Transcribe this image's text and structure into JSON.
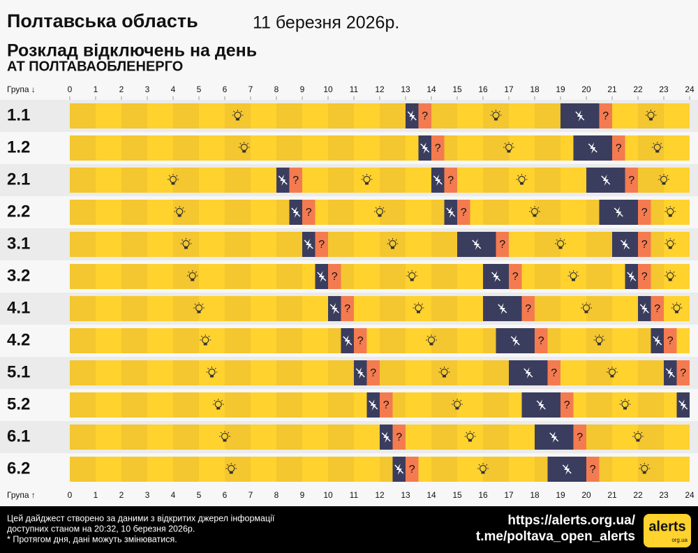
{
  "chart_data": {
    "type": "schedule",
    "title": "Полтавська область",
    "date": "11 березня 2026р.",
    "subtitle": "Розклад відключень на день",
    "company": "АТ ПОЛТАВАОБЛЕНЕРГО",
    "axis_label_top": "Група ↓",
    "axis_label_bottom": "Група ↑",
    "xlim": [
      0,
      24
    ],
    "xticks": [
      0,
      1,
      2,
      3,
      4,
      5,
      6,
      7,
      8,
      9,
      10,
      11,
      12,
      13,
      14,
      15,
      16,
      17,
      18,
      19,
      20,
      21,
      22,
      23,
      24
    ],
    "unknown_label": "?",
    "colors": {
      "on": "#ffd22e",
      "on_alt": "#f4c62f",
      "off": "#3b3d5f",
      "unknown": "#f47b50"
    },
    "groups": [
      {
        "name": "1.1",
        "segments": [
          {
            "start": 13,
            "end": 13.5,
            "state": "off"
          },
          {
            "start": 13.5,
            "end": 14,
            "state": "unknown"
          },
          {
            "start": 19,
            "end": 20.5,
            "state": "off"
          },
          {
            "start": 20.5,
            "end": 21,
            "state": "unknown"
          }
        ]
      },
      {
        "name": "1.2",
        "segments": [
          {
            "start": 13.5,
            "end": 14,
            "state": "off"
          },
          {
            "start": 14,
            "end": 14.5,
            "state": "unknown"
          },
          {
            "start": 19.5,
            "end": 21,
            "state": "off"
          },
          {
            "start": 21,
            "end": 21.5,
            "state": "unknown"
          }
        ]
      },
      {
        "name": "2.1",
        "segments": [
          {
            "start": 8,
            "end": 8.5,
            "state": "off"
          },
          {
            "start": 8.5,
            "end": 9,
            "state": "unknown"
          },
          {
            "start": 14,
            "end": 14.5,
            "state": "off"
          },
          {
            "start": 14.5,
            "end": 15,
            "state": "unknown"
          },
          {
            "start": 20,
            "end": 21.5,
            "state": "off"
          },
          {
            "start": 21.5,
            "end": 22,
            "state": "unknown"
          }
        ]
      },
      {
        "name": "2.2",
        "segments": [
          {
            "start": 8.5,
            "end": 9,
            "state": "off"
          },
          {
            "start": 9,
            "end": 9.5,
            "state": "unknown"
          },
          {
            "start": 14.5,
            "end": 15,
            "state": "off"
          },
          {
            "start": 15,
            "end": 15.5,
            "state": "unknown"
          },
          {
            "start": 20.5,
            "end": 22,
            "state": "off"
          },
          {
            "start": 22,
            "end": 22.5,
            "state": "unknown"
          }
        ]
      },
      {
        "name": "3.1",
        "segments": [
          {
            "start": 9,
            "end": 9.5,
            "state": "off"
          },
          {
            "start": 9.5,
            "end": 10,
            "state": "unknown"
          },
          {
            "start": 15,
            "end": 16.5,
            "state": "off"
          },
          {
            "start": 16.5,
            "end": 17,
            "state": "unknown"
          },
          {
            "start": 21,
            "end": 22,
            "state": "off"
          },
          {
            "start": 22,
            "end": 22.5,
            "state": "unknown"
          }
        ]
      },
      {
        "name": "3.2",
        "segments": [
          {
            "start": 9.5,
            "end": 10,
            "state": "off"
          },
          {
            "start": 10,
            "end": 10.5,
            "state": "unknown"
          },
          {
            "start": 16,
            "end": 17,
            "state": "off"
          },
          {
            "start": 17,
            "end": 17.5,
            "state": "unknown"
          },
          {
            "start": 21.5,
            "end": 22,
            "state": "off"
          },
          {
            "start": 22,
            "end": 22.5,
            "state": "unknown"
          }
        ]
      },
      {
        "name": "4.1",
        "segments": [
          {
            "start": 10,
            "end": 10.5,
            "state": "off"
          },
          {
            "start": 10.5,
            "end": 11,
            "state": "unknown"
          },
          {
            "start": 16,
            "end": 17.5,
            "state": "off"
          },
          {
            "start": 17.5,
            "end": 18,
            "state": "unknown"
          },
          {
            "start": 22,
            "end": 22.5,
            "state": "off"
          },
          {
            "start": 22.5,
            "end": 23,
            "state": "unknown"
          }
        ]
      },
      {
        "name": "4.2",
        "segments": [
          {
            "start": 10.5,
            "end": 11,
            "state": "off"
          },
          {
            "start": 11,
            "end": 11.5,
            "state": "unknown"
          },
          {
            "start": 16.5,
            "end": 18,
            "state": "off"
          },
          {
            "start": 18,
            "end": 18.5,
            "state": "unknown"
          },
          {
            "start": 22.5,
            "end": 23,
            "state": "off"
          },
          {
            "start": 23,
            "end": 23.5,
            "state": "unknown"
          }
        ]
      },
      {
        "name": "5.1",
        "segments": [
          {
            "start": 11,
            "end": 11.5,
            "state": "off"
          },
          {
            "start": 11.5,
            "end": 12,
            "state": "unknown"
          },
          {
            "start": 17,
            "end": 18.5,
            "state": "off"
          },
          {
            "start": 18.5,
            "end": 19,
            "state": "unknown"
          },
          {
            "start": 23,
            "end": 23.5,
            "state": "off"
          },
          {
            "start": 23.5,
            "end": 24,
            "state": "unknown"
          }
        ]
      },
      {
        "name": "5.2",
        "segments": [
          {
            "start": 11.5,
            "end": 12,
            "state": "off"
          },
          {
            "start": 12,
            "end": 12.5,
            "state": "unknown"
          },
          {
            "start": 17.5,
            "end": 19,
            "state": "off"
          },
          {
            "start": 19,
            "end": 19.5,
            "state": "unknown"
          },
          {
            "start": 23.5,
            "end": 24,
            "state": "off"
          }
        ]
      },
      {
        "name": "6.1",
        "segments": [
          {
            "start": 12,
            "end": 12.5,
            "state": "off"
          },
          {
            "start": 12.5,
            "end": 13,
            "state": "unknown"
          },
          {
            "start": 18,
            "end": 19.5,
            "state": "off"
          },
          {
            "start": 19.5,
            "end": 20,
            "state": "unknown"
          }
        ]
      },
      {
        "name": "6.2",
        "segments": [
          {
            "start": 12.5,
            "end": 13,
            "state": "off"
          },
          {
            "start": 13,
            "end": 13.5,
            "state": "unknown"
          },
          {
            "start": 18.5,
            "end": 20,
            "state": "off"
          },
          {
            "start": 20,
            "end": 20.5,
            "state": "unknown"
          }
        ]
      }
    ],
    "footer": {
      "note_lines": [
        "Цей дайджест створено за даними з відкритих джерел інформації",
        "доступних станом на 20:32, 10 березня 2026р.",
        "* Протягом дня, дані можуть змінюватися."
      ],
      "links": [
        "https://alerts.org.ua/",
        "t.me/poltava_open_alerts"
      ],
      "logo": "alerts",
      "logo_sub": "org.ua"
    }
  }
}
